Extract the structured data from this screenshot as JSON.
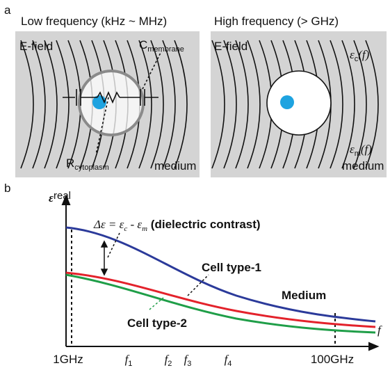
{
  "panel_a": {
    "label": "a",
    "left": {
      "title": "Low frequency (kHz ~ MHz)",
      "field": "E-field",
      "capacitor": {
        "base": "C",
        "sub": "membrane"
      },
      "resistor": {
        "base": "R",
        "sub": "cytoplasm"
      },
      "medium": "medium"
    },
    "right": {
      "title": "High frequency (> GHz)",
      "field": "E-field",
      "cell_permittivity": {
        "base": "ε",
        "sub": "c",
        "arg": "(f)"
      },
      "medium_permittivity": {
        "base": "ε",
        "sub": "m",
        "arg": "(f)"
      },
      "medium": "medium"
    }
  },
  "panel_b": {
    "label": "b",
    "y_axis": {
      "base": "ε",
      "sub": "real"
    },
    "x_axis": "f",
    "contrast": {
      "delta": "Δε = ε",
      "sub_c": "c",
      "minus": " - ε",
      "sub_m": "m",
      "note": " (dielectric contrast)"
    },
    "curves": [
      {
        "name": "Medium",
        "color": "#2b3a9a"
      },
      {
        "name": "Cell type-1",
        "color": "#e3222b"
      },
      {
        "name": "Cell type-2",
        "color": "#1f9e48"
      }
    ],
    "x_ticks": [
      {
        "base": "1GHz"
      },
      {
        "base": "f",
        "sub": "1"
      },
      {
        "base": "f",
        "sub": "2"
      },
      {
        "base": "f",
        "sub": "3"
      },
      {
        "base": "f",
        "sub": "4"
      },
      {
        "base": "100GHz"
      }
    ]
  }
}
